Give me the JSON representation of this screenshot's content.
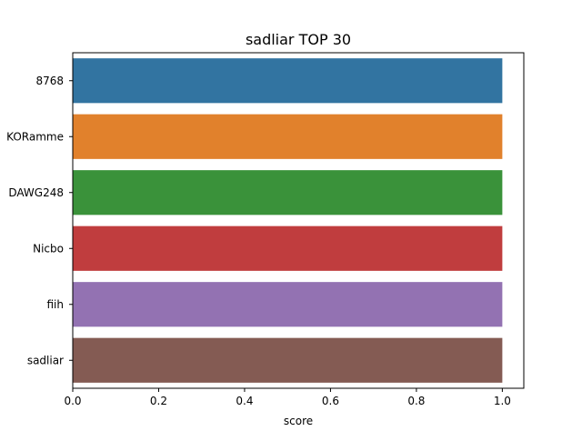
{
  "chart_data": {
    "type": "bar",
    "orientation": "horizontal",
    "title": "sadliar TOP 30",
    "xlabel": "score",
    "ylabel": "",
    "categories": [
      "8768",
      "KORamme",
      "DAWG248",
      "Nicbo",
      "fiih",
      "sadliar"
    ],
    "values": [
      1.0,
      1.0,
      1.0,
      1.0,
      1.0,
      1.0
    ],
    "colors": [
      "#3274a1",
      "#e1812c",
      "#3a923a",
      "#c03d3e",
      "#9372b2",
      "#845b53"
    ],
    "xlim": [
      0,
      1.05
    ],
    "x_ticks": [
      0.0,
      0.2,
      0.4,
      0.6,
      0.8,
      1.0
    ],
    "x_tick_labels": [
      "0.0",
      "0.2",
      "0.4",
      "0.6",
      "0.8",
      "1.0"
    ],
    "grid": false,
    "legend": "none"
  }
}
